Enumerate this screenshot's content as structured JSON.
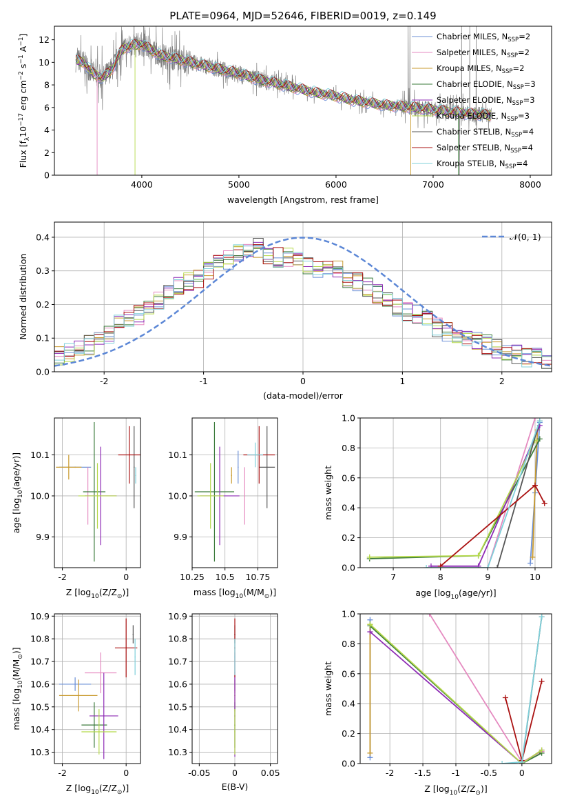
{
  "chart_data": [
    {
      "id": "spectrum",
      "type": "line",
      "title": "PLATE=0964, MJD=52646, FIBERID=0019, z=0.149",
      "xlabel": "wavelength [Angstrom, rest frame]",
      "ylabel_parts": [
        "Flux [f",
        "λ",
        "10",
        "−17",
        " erg cm",
        "−2",
        " s",
        "−1",
        " A",
        "−1",
        "]"
      ],
      "xlim": [
        3100,
        8220
      ],
      "ylim": [
        0,
        13.2
      ],
      "xticks": [
        4000,
        5000,
        6000,
        7000,
        8000
      ],
      "yticks": [
        0,
        2,
        4,
        6,
        8,
        10,
        12
      ],
      "legend_position": "upper right",
      "continuum_x": [
        3320,
        3400,
        3500,
        3600,
        3700,
        3800,
        3900,
        4000,
        4200,
        4500,
        4800,
        5000,
        5200,
        5500,
        5800,
        6000,
        6200,
        6500,
        6800,
        7000,
        7300,
        7600
      ],
      "continuum_y": [
        10.2,
        10.0,
        9.0,
        8.6,
        9.5,
        11.2,
        11.5,
        11.6,
        10.6,
        10.0,
        9.4,
        9.0,
        8.5,
        7.9,
        7.3,
        7.0,
        6.6,
        6.2,
        6.0,
        5.8,
        5.5,
        5.3
      ],
      "series": [
        {
          "name": "Chabrier MILES",
          "nssp": "2",
          "color": "#6b8fd6"
        },
        {
          "name": "Salpeter MILES",
          "nssp": "2",
          "color": "#e58ac0"
        },
        {
          "name": "Kroupa MILES",
          "nssp": "2",
          "color": "#c99a2e"
        },
        {
          "name": "Chabrier ELODIE",
          "nssp": "3",
          "color": "#3a7a3a"
        },
        {
          "name": "Salpeter ELODIE",
          "nssp": "3",
          "color": "#8e2bb5"
        },
        {
          "name": "Kroupa ELODIE",
          "nssp": "3",
          "color": "#b5d94a"
        },
        {
          "name": "Chabrier STELIB",
          "nssp": "4",
          "color": "#555555"
        },
        {
          "name": "Salpeter STELIB",
          "nssp": "4",
          "color": "#aa1111"
        },
        {
          "name": "Kroupa STELIB",
          "nssp": "4",
          "color": "#7fd0da"
        }
      ],
      "data_color": "#808080"
    },
    {
      "id": "residuals",
      "type": "line",
      "xlabel": "(data-model)/error",
      "ylabel": "Normed distribution",
      "xlim": [
        -2.5,
        2.5
      ],
      "ylim": [
        0,
        0.445
      ],
      "xticks": [
        -2,
        -1,
        0,
        1,
        2
      ],
      "yticks": [
        0.0,
        0.1,
        0.2,
        0.3,
        0.4
      ],
      "grid": true,
      "legend_label": "𝒩(0, 1)",
      "legend_position": "upper right",
      "histogram_centers": [
        -2.45,
        -2.35,
        -2.25,
        -2.15,
        -2.05,
        -1.95,
        -1.85,
        -1.75,
        -1.65,
        -1.55,
        -1.45,
        -1.35,
        -1.25,
        -1.15,
        -1.05,
        -0.95,
        -0.85,
        -0.75,
        -0.65,
        -0.55,
        -0.45,
        -0.35,
        -0.25,
        -0.15,
        -0.05,
        0.05,
        0.15,
        0.25,
        0.35,
        0.45,
        0.55,
        0.65,
        0.75,
        0.85,
        0.95,
        1.05,
        1.15,
        1.25,
        1.35,
        1.45,
        1.55,
        1.65,
        1.75,
        1.85,
        1.95,
        2.05,
        2.15,
        2.25,
        2.35,
        2.45
      ],
      "histogram_values": [
        0.05,
        0.06,
        0.07,
        0.08,
        0.09,
        0.11,
        0.14,
        0.16,
        0.17,
        0.19,
        0.21,
        0.24,
        0.26,
        0.27,
        0.28,
        0.3,
        0.32,
        0.33,
        0.35,
        0.36,
        0.37,
        0.35,
        0.34,
        0.34,
        0.33,
        0.32,
        0.31,
        0.31,
        0.3,
        0.28,
        0.27,
        0.25,
        0.23,
        0.21,
        0.19,
        0.18,
        0.17,
        0.15,
        0.13,
        0.12,
        0.11,
        0.1,
        0.09,
        0.08,
        0.07,
        0.06,
        0.05,
        0.04,
        0.04,
        0.03
      ],
      "normal_color": "#5c87d6"
    },
    {
      "id": "age-vs-Z",
      "type": "scatter",
      "xlabel_parts": [
        "Z [log",
        "10",
        "(Z/Z",
        "⊙",
        ")]"
      ],
      "ylabel_parts": [
        "age  [log",
        "10",
        "(age/yr)]"
      ],
      "xlim": [
        -2.25,
        0.45
      ],
      "ylim": [
        9.825,
        10.19
      ],
      "xticks": [
        -2,
        0
      ],
      "yticks": [
        9.9,
        10.0,
        10.1
      ],
      "grid": true,
      "points": [
        {
          "x": -1.6,
          "y": 10.07,
          "xerr": 0.5,
          "yerr": 0.0,
          "ci": 0
        },
        {
          "x": -1.2,
          "y": 10.0,
          "xerr": 0.0,
          "yerr": 0.07,
          "ci": 1
        },
        {
          "x": -1.8,
          "y": 10.07,
          "xerr": 0.4,
          "yerr": 0.03,
          "ci": 2
        },
        {
          "x": -1.0,
          "y": 10.01,
          "xerr": 0.35,
          "yerr": 0.17,
          "ci": 3
        },
        {
          "x": -0.8,
          "y": 10.0,
          "xerr": 0.5,
          "yerr": 0.12,
          "ci": 4
        },
        {
          "x": -0.9,
          "y": 10.0,
          "xerr": 0.6,
          "yerr": 0.08,
          "ci": 5
        },
        {
          "x": 0.25,
          "y": 10.07,
          "xerr": 0.0,
          "yerr": 0.1,
          "ci": 6
        },
        {
          "x": 0.1,
          "y": 10.1,
          "xerr": 0.35,
          "yerr": 0.07,
          "ci": 7
        },
        {
          "x": 0.3,
          "y": 10.05,
          "xerr": 0.0,
          "yerr": 0.02,
          "ci": 8
        }
      ]
    },
    {
      "id": "age-vs-mass",
      "type": "scatter",
      "xlabel_parts": [
        "mass [log",
        "10",
        "(M/M",
        "⊙",
        ")]"
      ],
      "ylabel": "",
      "xlim": [
        10.25,
        10.9
      ],
      "ylim": [
        9.825,
        10.19
      ],
      "xticks": [
        10.25,
        10.5,
        10.75
      ],
      "yticks": [
        9.9,
        10.0,
        10.1
      ],
      "grid": true,
      "points": [
        {
          "x": 10.6,
          "y": 10.07,
          "xerr": 0.0,
          "yerr": 0.04,
          "ci": 0
        },
        {
          "x": 10.65,
          "y": 10.0,
          "xerr": 0.0,
          "yerr": 0.07,
          "ci": 1
        },
        {
          "x": 10.55,
          "y": 10.05,
          "xerr": 0.0,
          "yerr": 0.02,
          "ci": 2
        },
        {
          "x": 10.42,
          "y": 10.01,
          "xerr": 0.15,
          "yerr": 0.17,
          "ci": 3
        },
        {
          "x": 10.46,
          "y": 10.0,
          "xerr": 0.15,
          "yerr": 0.12,
          "ci": 4
        },
        {
          "x": 10.39,
          "y": 10.0,
          "xerr": 0.1,
          "yerr": 0.08,
          "ci": 5
        },
        {
          "x": 10.82,
          "y": 10.07,
          "xerr": 0.06,
          "yerr": 0.1,
          "ci": 6
        },
        {
          "x": 10.76,
          "y": 10.1,
          "xerr": 0.12,
          "yerr": 0.07,
          "ci": 7
        },
        {
          "x": 10.73,
          "y": 10.1,
          "xerr": 0.06,
          "yerr": 0.03,
          "ci": 8
        }
      ]
    },
    {
      "id": "mass-weight-vs-age",
      "type": "line",
      "xlabel_parts": [
        "age  [log",
        "10",
        "(age/yr)]"
      ],
      "ylabel": "mass weight",
      "xlim": [
        6.3,
        10.35
      ],
      "ylim": [
        0,
        1.0
      ],
      "xticks": [
        7,
        8,
        9,
        10
      ],
      "yticks": [
        0.0,
        0.2,
        0.4,
        0.6,
        0.8,
        1.0
      ],
      "grid": true,
      "series": [
        {
          "ci": 0,
          "x": [
            9.9,
            10.0,
            10.1
          ],
          "y": [
            0.03,
            0.5,
            0.97
          ]
        },
        {
          "ci": 1,
          "x": [
            8.8,
            9.0,
            10.0
          ],
          "y": [
            0.0,
            0.0,
            1.0
          ]
        },
        {
          "ci": 2,
          "x": [
            9.95,
            10.0,
            10.05
          ],
          "y": [
            0.07,
            0.55,
            0.92
          ]
        },
        {
          "ci": 3,
          "x": [
            6.5,
            8.8,
            10.1
          ],
          "y": [
            0.06,
            0.08,
            0.86
          ]
        },
        {
          "ci": 4,
          "x": [
            7.8,
            8.8,
            10.1
          ],
          "y": [
            0.01,
            0.01,
            0.95
          ]
        },
        {
          "ci": 5,
          "x": [
            6.5,
            8.8,
            10.0
          ],
          "y": [
            0.07,
            0.08,
            0.85
          ]
        },
        {
          "ci": 6,
          "x": [
            9.2,
            10.1
          ],
          "y": [
            0.0,
            0.98
          ]
        },
        {
          "ci": 7,
          "x": [
            8.0,
            10.0,
            10.2
          ],
          "y": [
            0.01,
            0.55,
            0.43
          ]
        },
        {
          "ci": 8,
          "x": [
            7.7,
            9.0,
            10.1
          ],
          "y": [
            0.0,
            0.0,
            0.98
          ]
        }
      ]
    },
    {
      "id": "mass-vs-Z",
      "type": "scatter",
      "xlabel_parts": [
        "Z [log",
        "10",
        "(Z/Z",
        "⊙",
        ")]"
      ],
      "ylabel_parts": [
        "mass [log",
        "10",
        "(M/M",
        "⊙",
        ")]"
      ],
      "xlim": [
        -2.25,
        0.45
      ],
      "ylim": [
        10.25,
        10.91
      ],
      "xticks": [
        -2,
        0
      ],
      "yticks": [
        10.3,
        10.4,
        10.5,
        10.6,
        10.7,
        10.8,
        10.9
      ],
      "grid": true,
      "points": [
        {
          "x": -1.6,
          "y": 10.6,
          "xerr": 0.5,
          "yerr": 0.03,
          "ci": 0
        },
        {
          "x": -0.8,
          "y": 10.65,
          "xerr": 0.5,
          "yerr": 0.09,
          "ci": 1
        },
        {
          "x": -1.5,
          "y": 10.55,
          "xerr": 0.6,
          "yerr": 0.07,
          "ci": 2
        },
        {
          "x": -1.0,
          "y": 10.42,
          "xerr": 0.4,
          "yerr": 0.1,
          "ci": 3
        },
        {
          "x": -0.7,
          "y": 10.46,
          "xerr": 0.45,
          "yerr": 0.19,
          "ci": 4
        },
        {
          "x": -0.85,
          "y": 10.39,
          "xerr": 0.55,
          "yerr": 0.1,
          "ci": 5
        },
        {
          "x": 0.22,
          "y": 10.82,
          "xerr": 0.0,
          "yerr": 0.04,
          "ci": 6
        },
        {
          "x": 0.0,
          "y": 10.76,
          "xerr": 0.35,
          "yerr": 0.13,
          "ci": 7
        },
        {
          "x": 0.28,
          "y": 10.72,
          "xerr": 0.0,
          "yerr": 0.08,
          "ci": 8
        }
      ]
    },
    {
      "id": "mass-vs-EBV",
      "type": "scatter",
      "xlabel": "E(B-V)",
      "ylabel": "",
      "xlim": [
        -0.06,
        0.06
      ],
      "ylim": [
        10.25,
        10.91
      ],
      "xticks": [
        -0.05,
        0.0,
        0.05
      ],
      "yticks": [
        10.3,
        10.4,
        10.5,
        10.6,
        10.7,
        10.8,
        10.9
      ],
      "grid": true,
      "points": [
        {
          "x": 0.0,
          "y": 10.6,
          "xerr": 0.0,
          "yerr": 0.03,
          "ci": 0
        },
        {
          "x": 0.0,
          "y": 10.65,
          "xerr": 0.0,
          "yerr": 0.09,
          "ci": 1
        },
        {
          "x": 0.0,
          "y": 10.55,
          "xerr": 0.0,
          "yerr": 0.07,
          "ci": 2
        },
        {
          "x": 0.0,
          "y": 10.42,
          "xerr": 0.0,
          "yerr": 0.1,
          "ci": 3
        },
        {
          "x": 0.0,
          "y": 10.46,
          "xerr": 0.0,
          "yerr": 0.18,
          "ci": 4
        },
        {
          "x": 0.0,
          "y": 10.39,
          "xerr": 0.0,
          "yerr": 0.1,
          "ci": 5
        },
        {
          "x": 0.0,
          "y": 10.82,
          "xerr": 0.0,
          "yerr": 0.04,
          "ci": 6
        },
        {
          "x": 0.0,
          "y": 10.76,
          "xerr": 0.0,
          "yerr": 0.13,
          "ci": 7
        },
        {
          "x": 0.0,
          "y": 10.72,
          "xerr": 0.0,
          "yerr": 0.08,
          "ci": 8
        }
      ]
    },
    {
      "id": "mass-weight-vs-Z",
      "type": "line",
      "xlabel_parts": [
        "Z [log",
        "10",
        "(Z/Z",
        "⊙",
        ")]"
      ],
      "ylabel": "mass weight",
      "xlim": [
        -2.45,
        0.45
      ],
      "ylim": [
        0,
        1.0
      ],
      "xticks": [
        -2.0,
        -1.5,
        -1.0,
        -0.5,
        0.0
      ],
      "yticks": [
        0.0,
        0.2,
        0.4,
        0.6,
        0.8,
        1.0
      ],
      "grid": true,
      "series": [
        {
          "ci": 0,
          "x": [
            -2.3,
            -2.3
          ],
          "y": [
            0.04,
            0.96
          ]
        },
        {
          "ci": 1,
          "x": [
            -1.4,
            0.0,
            0.3
          ],
          "y": [
            1.0,
            0.01,
            0.08
          ]
        },
        {
          "ci": 2,
          "x": [
            -2.3,
            -2.3
          ],
          "y": [
            0.07,
            0.93
          ]
        },
        {
          "ci": 3,
          "x": [
            -2.3,
            0.0,
            0.3
          ],
          "y": [
            0.92,
            0.0,
            0.07
          ]
        },
        {
          "ci": 4,
          "x": [
            -2.3,
            0.0,
            0.3
          ],
          "y": [
            0.88,
            0.0,
            0.09
          ]
        },
        {
          "ci": 5,
          "x": [
            -2.3,
            0.0,
            0.3
          ],
          "y": [
            0.93,
            0.0,
            0.09
          ]
        },
        {
          "ci": 6,
          "x": [
            0.0,
            0.3
          ],
          "y": [
            0.0,
            0.98
          ]
        },
        {
          "ci": 7,
          "x": [
            -0.25,
            0.0,
            0.3
          ],
          "y": [
            0.44,
            0.02,
            0.55
          ]
        },
        {
          "ci": 8,
          "x": [
            -0.3,
            0.0,
            0.3
          ],
          "y": [
            0.0,
            0.01,
            0.98
          ]
        }
      ]
    }
  ]
}
